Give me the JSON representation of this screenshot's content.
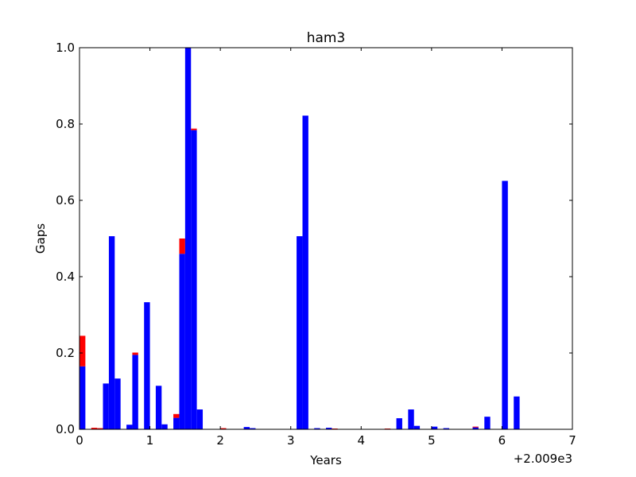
{
  "chart_data": {
    "type": "bar",
    "title": "ham3",
    "xlabel": "Years",
    "ylabel": "Gaps",
    "x_offset_label": "+2.009e3",
    "xlim": [
      0,
      7
    ],
    "ylim": [
      0,
      1.0
    ],
    "xticks": [
      "0",
      "1",
      "2",
      "3",
      "4",
      "5",
      "6",
      "7"
    ],
    "yticks": [
      "0.0",
      "0.2",
      "0.4",
      "0.6",
      "0.8",
      "1.0"
    ],
    "bar_width": 0.0833,
    "grid": false,
    "stacked": true,
    "colors": {
      "blue": "#0000ff",
      "red": "#ff0000"
    },
    "bars": [
      {
        "x": 0.0,
        "blue": 0.165,
        "red": 0.08
      },
      {
        "x": 0.167,
        "blue": 0.0,
        "red": 0.004
      },
      {
        "x": 0.25,
        "blue": 0.0,
        "red": 0.003
      },
      {
        "x": 0.333,
        "blue": 0.12,
        "red": 0.0
      },
      {
        "x": 0.417,
        "blue": 0.506,
        "red": 0.0
      },
      {
        "x": 0.5,
        "blue": 0.133,
        "red": 0.0
      },
      {
        "x": 0.667,
        "blue": 0.012,
        "red": 0.0
      },
      {
        "x": 0.75,
        "blue": 0.195,
        "red": 0.006
      },
      {
        "x": 0.917,
        "blue": 0.333,
        "red": 0.0
      },
      {
        "x": 1.083,
        "blue": 0.114,
        "red": 0.0
      },
      {
        "x": 1.167,
        "blue": 0.013,
        "red": 0.0
      },
      {
        "x": 1.333,
        "blue": 0.03,
        "red": 0.01
      },
      {
        "x": 1.417,
        "blue": 0.46,
        "red": 0.04
      },
      {
        "x": 1.5,
        "blue": 1.0,
        "red": 0.0
      },
      {
        "x": 1.583,
        "blue": 0.784,
        "red": 0.004
      },
      {
        "x": 1.667,
        "blue": 0.052,
        "red": 0.0
      },
      {
        "x": 2.0,
        "blue": 0.0,
        "red": 0.003
      },
      {
        "x": 2.333,
        "blue": 0.006,
        "red": 0.0
      },
      {
        "x": 2.417,
        "blue": 0.003,
        "red": 0.0
      },
      {
        "x": 3.083,
        "blue": 0.506,
        "red": 0.0
      },
      {
        "x": 3.167,
        "blue": 0.822,
        "red": 0.0
      },
      {
        "x": 3.333,
        "blue": 0.003,
        "red": 0.0
      },
      {
        "x": 3.5,
        "blue": 0.004,
        "red": 0.0
      },
      {
        "x": 3.583,
        "blue": 0.0,
        "red": 0.002
      },
      {
        "x": 4.333,
        "blue": 0.0,
        "red": 0.002
      },
      {
        "x": 4.5,
        "blue": 0.029,
        "red": 0.0
      },
      {
        "x": 4.667,
        "blue": 0.052,
        "red": 0.0
      },
      {
        "x": 4.75,
        "blue": 0.009,
        "red": 0.0
      },
      {
        "x": 5.0,
        "blue": 0.007,
        "red": 0.0
      },
      {
        "x": 5.167,
        "blue": 0.003,
        "red": 0.0
      },
      {
        "x": 5.583,
        "blue": 0.005,
        "red": 0.002
      },
      {
        "x": 5.75,
        "blue": 0.033,
        "red": 0.0
      },
      {
        "x": 6.0,
        "blue": 0.651,
        "red": 0.0
      },
      {
        "x": 6.167,
        "blue": 0.086,
        "red": 0.0
      }
    ]
  }
}
